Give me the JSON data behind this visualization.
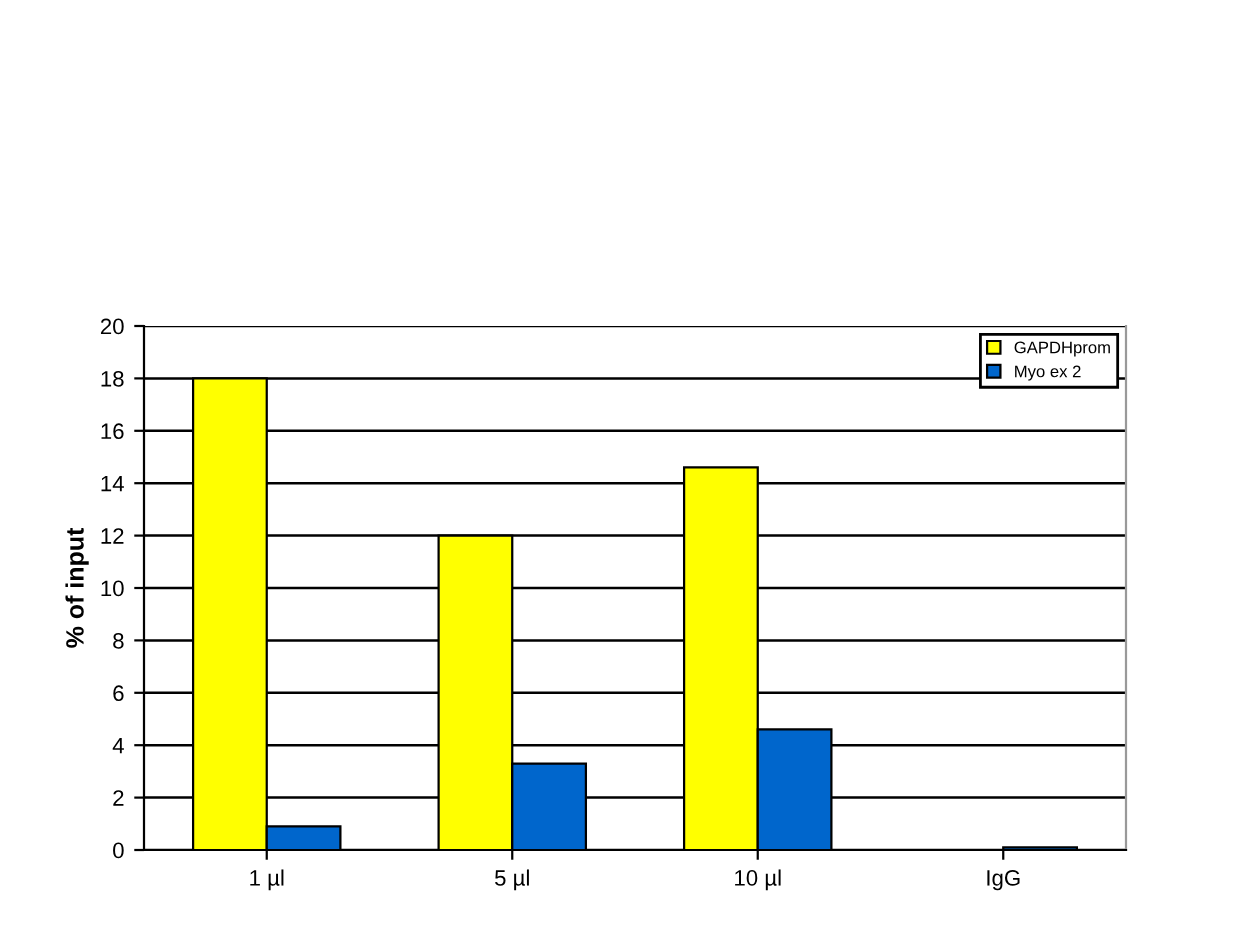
{
  "chart_data": {
    "type": "bar",
    "ylabel": "% of input",
    "categories": [
      "1 µl",
      "5 µl",
      "10 µl",
      "IgG"
    ],
    "series": [
      {
        "name": "GAPDHprom",
        "color": "#ffff00",
        "values": [
          18,
          12,
          14.6,
          null
        ]
      },
      {
        "name": "Myo ex 2",
        "color": "#0066cc",
        "values": [
          0.9,
          3.3,
          4.6,
          0.1
        ]
      }
    ],
    "ylim": [
      0,
      20
    ],
    "yticks": [
      0,
      2,
      4,
      6,
      8,
      10,
      12,
      14,
      16,
      18,
      20
    ],
    "grid": "y",
    "legend": "top right"
  }
}
